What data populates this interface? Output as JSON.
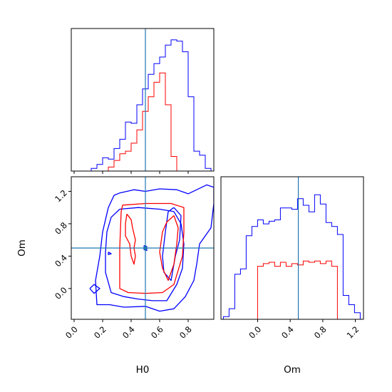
{
  "chart_data": {
    "type": "corner",
    "parameters": [
      "H0",
      "Om"
    ],
    "truths": {
      "H0": 0.5,
      "Om": 0.5
    },
    "truth_color": "#1f77b4",
    "series": [
      {
        "color": "#0000ff"
      },
      {
        "color": "#ff0000"
      }
    ],
    "panels": [
      {
        "id": "hist-H0",
        "type": "histogram",
        "xlim": [
          -0.02,
          0.98
        ],
        "bin_edges": [
          0.0,
          0.04,
          0.08,
          0.12,
          0.16,
          0.2,
          0.24,
          0.28,
          0.32,
          0.36,
          0.4,
          0.44,
          0.48,
          0.52,
          0.56,
          0.6,
          0.64,
          0.68,
          0.72,
          0.76,
          0.8,
          0.84,
          0.88,
          0.92,
          0.96
        ],
        "ymax": 1.0,
        "series_counts": [
          [
            0.0,
            0.0,
            0.0,
            0.02,
            0.05,
            0.1,
            0.09,
            0.17,
            0.24,
            0.37,
            0.36,
            0.5,
            0.62,
            0.73,
            0.81,
            0.86,
            0.95,
            0.99,
            0.98,
            0.9,
            0.56,
            0.15,
            0.12,
            0.02
          ],
          [
            0.0,
            0.0,
            0.0,
            0.0,
            0.0,
            0.0,
            0.03,
            0.08,
            0.13,
            0.15,
            0.21,
            0.31,
            0.45,
            0.56,
            0.67,
            0.74,
            0.5,
            0.11,
            0.0,
            0.0,
            0.0,
            0.0,
            0.0,
            0.0
          ]
        ],
        "x_ticks": [
          0.0,
          0.2,
          0.4,
          0.6,
          0.8
        ],
        "show_tick_labels": false
      },
      {
        "id": "hist-Om",
        "type": "histogram",
        "xlim": [
          -0.45,
          1.3
        ],
        "bin_edges": [
          -0.42,
          -0.35,
          -0.28,
          -0.21,
          -0.14,
          -0.07,
          0.0,
          0.07,
          0.14,
          0.21,
          0.28,
          0.35,
          0.42,
          0.49,
          0.56,
          0.63,
          0.7,
          0.77,
          0.84,
          0.91,
          0.98,
          1.05,
          1.12,
          1.19,
          1.26
        ],
        "ymax": 1.0,
        "series_counts": [
          [
            0.02,
            0.08,
            0.34,
            0.38,
            0.63,
            0.7,
            0.75,
            0.72,
            0.74,
            0.75,
            0.84,
            0.84,
            0.83,
            0.91,
            0.86,
            0.81,
            0.94,
            0.87,
            0.73,
            0.7,
            0.64,
            0.18,
            0.11,
            0.05
          ],
          [
            0.0,
            0.0,
            0.0,
            0.0,
            0.0,
            0.0,
            0.4,
            0.42,
            0.43,
            0.4,
            0.43,
            0.4,
            0.42,
            0.41,
            0.44,
            0.43,
            0.44,
            0.42,
            0.44,
            0.4,
            0.0,
            0.0,
            0.0,
            0.0
          ]
        ],
        "x_ticks": [
          0.0,
          0.4,
          0.8,
          1.2
        ],
        "x_tick_labels": [
          "0.0",
          "0.4",
          "0.8",
          "1.2"
        ],
        "xlabel": "Om"
      },
      {
        "id": "contour-H0-Om",
        "type": "contour",
        "xlim": [
          -0.02,
          0.98
        ],
        "ylim": [
          -0.38,
          1.38
        ],
        "x_ticks": [
          0.0,
          0.2,
          0.4,
          0.6,
          0.8
        ],
        "x_tick_labels": [
          "0.0",
          "0.2",
          "0.4",
          "0.6",
          "0.8"
        ],
        "y_ticks": [
          0.0,
          0.4,
          0.8,
          1.2
        ],
        "y_tick_labels": [
          "0.0",
          "0.4",
          "0.8",
          "1.2"
        ],
        "xlabel": "H0",
        "ylabel": "Om",
        "contours": [
          {
            "series": 0,
            "points": [
              [
                0.32,
                1.18
              ],
              [
                0.42,
                1.22
              ],
              [
                0.5,
                1.2
              ],
              [
                0.6,
                1.23
              ],
              [
                0.72,
                1.22
              ],
              [
                0.8,
                1.17
              ],
              [
                0.93,
                1.28
              ],
              [
                0.98,
                1.25
              ],
              [
                0.98,
                1.05
              ],
              [
                0.96,
                0.75
              ],
              [
                0.88,
                0.55
              ],
              [
                0.86,
                0.3
              ],
              [
                0.84,
                0.1
              ],
              [
                0.78,
                -0.1
              ],
              [
                0.7,
                -0.25
              ],
              [
                0.6,
                -0.28
              ],
              [
                0.5,
                -0.22
              ],
              [
                0.35,
                -0.23
              ],
              [
                0.25,
                -0.2
              ],
              [
                0.16,
                -0.2
              ],
              [
                0.15,
                0.1
              ],
              [
                0.18,
                0.4
              ],
              [
                0.2,
                0.7
              ],
              [
                0.24,
                1.0
              ],
              [
                0.28,
                1.15
              ],
              [
                0.32,
                1.18
              ]
            ]
          },
          {
            "series": 0,
            "points": [
              [
                0.32,
                0.98
              ],
              [
                0.45,
                1.0
              ],
              [
                0.6,
                0.98
              ],
              [
                0.7,
                0.95
              ],
              [
                0.75,
                0.8
              ],
              [
                0.77,
                0.55
              ],
              [
                0.76,
                0.25
              ],
              [
                0.72,
                0.05
              ],
              [
                0.65,
                -0.15
              ],
              [
                0.55,
                -0.15
              ],
              [
                0.45,
                -0.13
              ],
              [
                0.35,
                -0.1
              ],
              [
                0.26,
                -0.05
              ],
              [
                0.22,
                0.2
              ],
              [
                0.22,
                0.45
              ],
              [
                0.23,
                0.7
              ],
              [
                0.26,
                0.88
              ],
              [
                0.32,
                0.98
              ]
            ]
          },
          {
            "series": 0,
            "points": [
              [
                0.7,
                1.0
              ],
              [
                0.75,
                0.9
              ],
              [
                0.74,
                0.6
              ],
              [
                0.71,
                0.4
              ],
              [
                0.68,
                0.1
              ],
              [
                0.63,
                0.2
              ],
              [
                0.62,
                0.4
              ],
              [
                0.64,
                0.7
              ],
              [
                0.66,
                0.95
              ],
              [
                0.7,
                1.0
              ]
            ]
          },
          {
            "series": 0,
            "points": [
              [
                0.49,
                0.53
              ],
              [
                0.51,
                0.52
              ],
              [
                0.51,
                0.47
              ],
              [
                0.49,
                0.48
              ],
              [
                0.49,
                0.53
              ]
            ]
          },
          {
            "series": 0,
            "points": [
              [
                0.24,
                0.45
              ],
              [
                0.26,
                0.43
              ],
              [
                0.24,
                0.42
              ],
              [
                0.24,
                0.45
              ]
            ]
          },
          {
            "series": 0,
            "points": [
              [
                0.11,
                0.0
              ],
              [
                0.14,
                0.05
              ],
              [
                0.18,
                0.0
              ],
              [
                0.14,
                -0.06
              ],
              [
                0.11,
                0.0
              ]
            ]
          },
          {
            "series": 1,
            "points": [
              [
                0.34,
                1.03
              ],
              [
                0.5,
                1.05
              ],
              [
                0.68,
                1.05
              ],
              [
                0.77,
                1.0
              ],
              [
                0.77,
                0.7
              ],
              [
                0.76,
                0.4
              ],
              [
                0.7,
                0.05
              ],
              [
                0.62,
                -0.05
              ],
              [
                0.5,
                -0.06
              ],
              [
                0.38,
                -0.05
              ],
              [
                0.32,
                0.0
              ],
              [
                0.32,
                0.5
              ],
              [
                0.33,
                0.95
              ],
              [
                0.34,
                1.03
              ]
            ]
          },
          {
            "series": 1,
            "points": [
              [
                0.37,
                0.92
              ],
              [
                0.4,
                0.85
              ],
              [
                0.41,
                0.75
              ],
              [
                0.43,
                0.6
              ],
              [
                0.42,
                0.5
              ],
              [
                0.43,
                0.4
              ],
              [
                0.42,
                0.3
              ],
              [
                0.4,
                0.4
              ],
              [
                0.39,
                0.55
              ],
              [
                0.36,
                0.65
              ],
              [
                0.36,
                0.8
              ],
              [
                0.37,
                0.92
              ]
            ]
          },
          {
            "series": 1,
            "points": [
              [
                0.7,
                0.9
              ],
              [
                0.73,
                0.75
              ],
              [
                0.72,
                0.55
              ],
              [
                0.7,
                0.3
              ],
              [
                0.66,
                0.1
              ],
              [
                0.62,
                0.25
              ],
              [
                0.6,
                0.45
              ],
              [
                0.62,
                0.7
              ],
              [
                0.65,
                0.82
              ],
              [
                0.7,
                0.9
              ]
            ]
          }
        ]
      }
    ]
  }
}
